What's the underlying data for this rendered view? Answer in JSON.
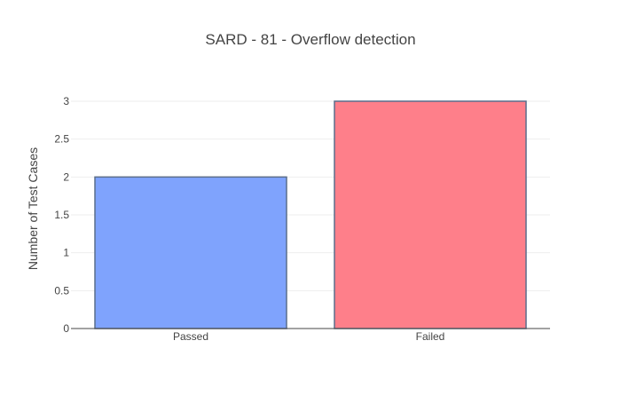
{
  "chart_data": {
    "type": "bar",
    "title": "SARD - 81 - Overflow detection",
    "xlabel": "",
    "ylabel": "Number of Test Cases",
    "categories": [
      "Passed",
      "Failed"
    ],
    "values": [
      2,
      3
    ],
    "ylim": [
      0,
      3
    ],
    "yticks": [
      0,
      0.5,
      1,
      1.5,
      2,
      2.5,
      3
    ],
    "ytick_labels": [
      "0",
      "0.5",
      "1",
      "1.5",
      "2",
      "2.5",
      "3"
    ],
    "grid": true,
    "legend": "none",
    "colors": {
      "bars": [
        "#7fa3fd",
        "#fe7f8a"
      ],
      "bar_outline": "#5a6e8c",
      "grid": "#eeeeee",
      "axis": "#444444",
      "text": "#444444"
    }
  }
}
